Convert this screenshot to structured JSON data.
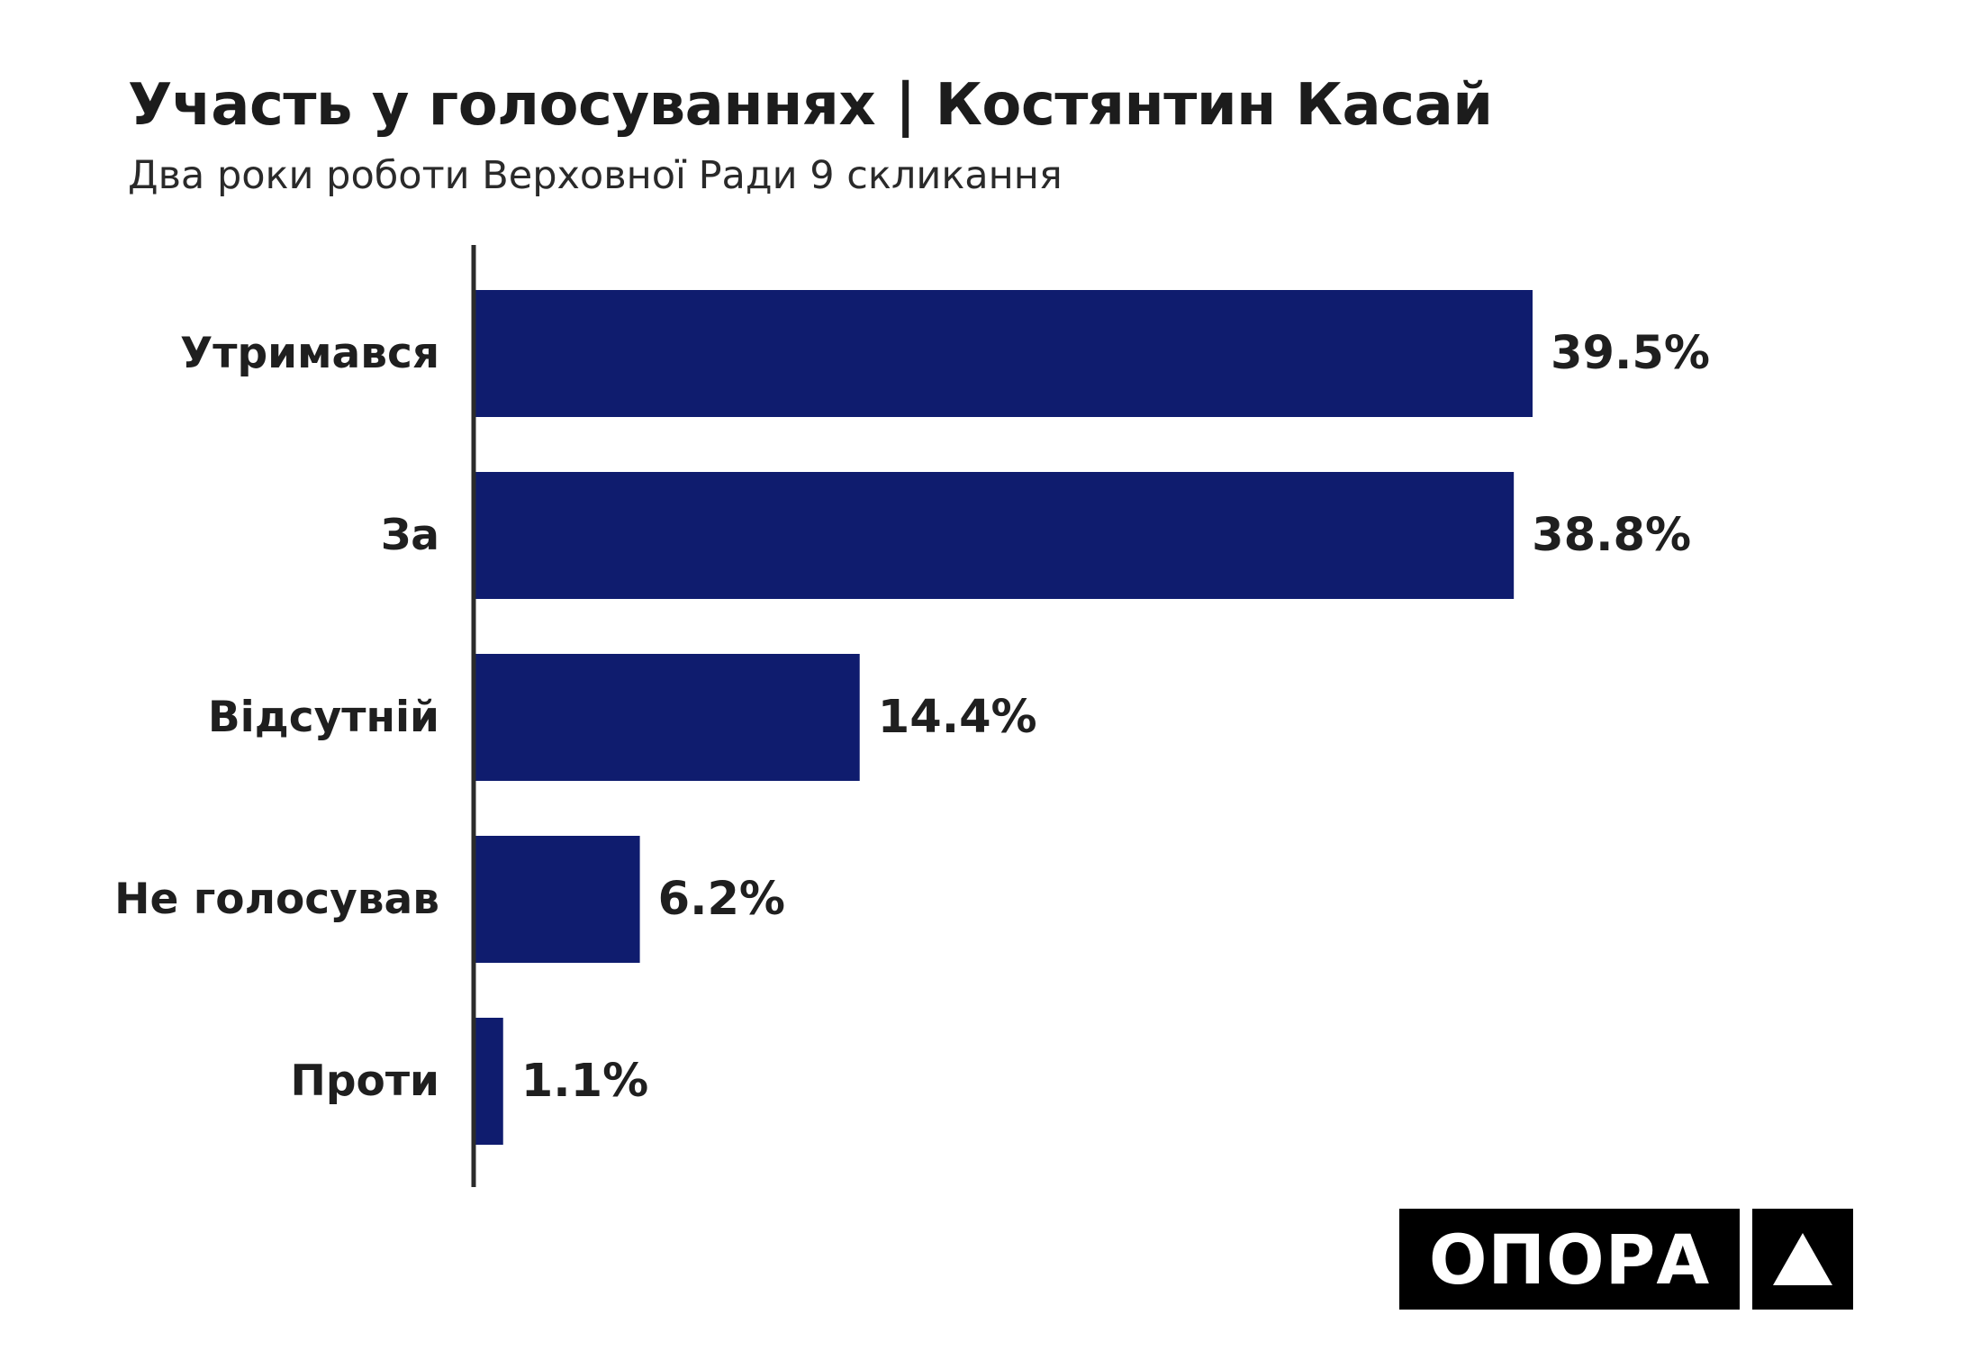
{
  "header": {
    "title": "Участь у голосуваннях | Костянтин Касай",
    "subtitle": "Два роки роботи Верховної Ради 9 скликання"
  },
  "logo": {
    "text": "ОПОРА",
    "mark": "triangle-icon"
  },
  "colors": {
    "bar": "#0f1c6e",
    "axis": "#2b2b2b",
    "label": "#1f1f1f"
  },
  "chart_data": {
    "type": "bar",
    "orientation": "horizontal",
    "categories": [
      "Утримався",
      "За",
      "Відсутній",
      "Не голосував",
      "Проти"
    ],
    "values": [
      39.5,
      38.8,
      14.4,
      6.2,
      1.1
    ],
    "value_labels": [
      "39.5%",
      "38.8%",
      "14.4%",
      "6.2%",
      "1.1%"
    ],
    "title": "Участь у голосуваннях | Костянтин Касай",
    "subtitle": "Два роки роботи Верховної Ради 9 скликання",
    "xlabel": "",
    "ylabel": "",
    "xlim": [
      0,
      39.5
    ],
    "grid": false,
    "legend": "none"
  }
}
